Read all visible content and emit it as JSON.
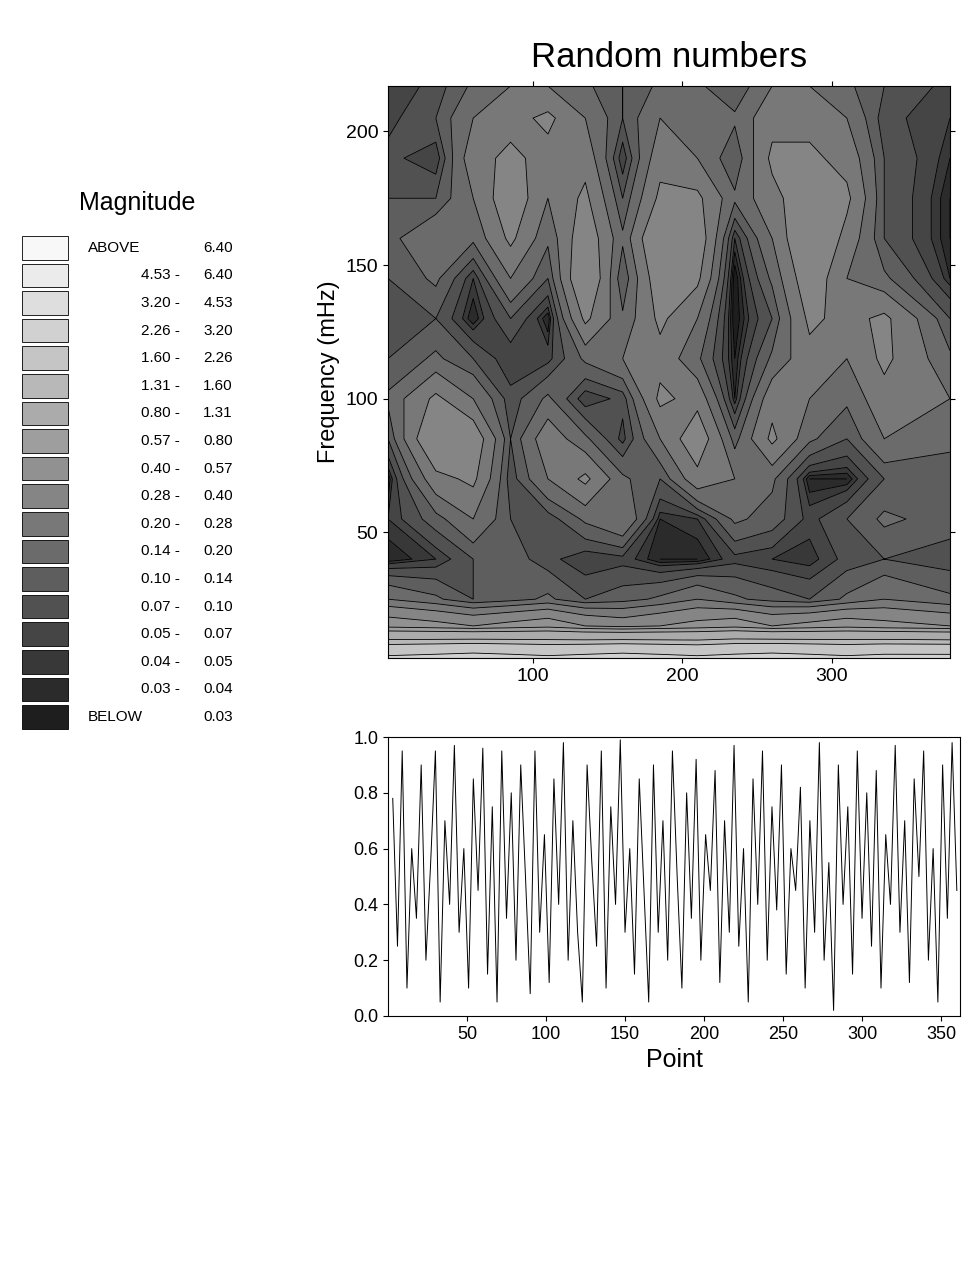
{
  "chart_data": [
    {
      "type": "contour",
      "title": "Random numbers",
      "y_label": "Frequency (mHz)",
      "x": [
        3,
        35,
        60,
        85,
        110,
        135,
        160,
        185,
        210,
        235,
        260,
        285,
        310,
        335,
        379
      ],
      "y": [
        3,
        15,
        25,
        40,
        55,
        70,
        85,
        100,
        115,
        130,
        145,
        160,
        175,
        190,
        205,
        217
      ],
      "cells": [
        [
          2.4,
          2.5,
          2.6,
          2.5,
          2.4,
          2.5,
          2.6,
          2.5,
          2.4,
          2.5,
          2.6,
          2.5,
          2.4,
          2.5,
          2.5
        ],
        [
          0.5,
          0.45,
          0.4,
          0.45,
          0.5,
          0.4,
          0.35,
          0.4,
          0.45,
          0.5,
          0.4,
          0.45,
          0.5,
          0.45,
          0.4
        ],
        [
          0.2,
          0.15,
          0.1,
          0.12,
          0.15,
          0.1,
          0.12,
          0.15,
          0.2,
          0.15,
          0.12,
          0.1,
          0.15,
          0.2,
          0.15
        ],
        [
          0.03,
          0.05,
          0.1,
          0.12,
          0.08,
          0.05,
          0.06,
          0.03,
          0.03,
          0.06,
          0.05,
          0.04,
          0.08,
          0.1,
          0.08
        ],
        [
          0.05,
          0.12,
          0.2,
          0.1,
          0.08,
          0.15,
          0.2,
          0.04,
          0.05,
          0.15,
          0.12,
          0.06,
          0.1,
          0.15,
          0.12
        ],
        [
          0.03,
          0.25,
          0.3,
          0.08,
          0.2,
          0.3,
          0.15,
          0.1,
          0.25,
          0.2,
          0.15,
          0.03,
          0.03,
          0.1,
          0.12
        ],
        [
          0.1,
          0.4,
          0.35,
          0.1,
          0.25,
          0.15,
          0.06,
          0.2,
          0.35,
          0.12,
          0.3,
          0.15,
          0.1,
          0.2,
          0.15
        ],
        [
          0.15,
          0.3,
          0.2,
          0.08,
          0.15,
          0.05,
          0.08,
          0.3,
          0.25,
          0.04,
          0.25,
          0.2,
          0.15,
          0.25,
          0.2
        ],
        [
          0.1,
          0.15,
          0.1,
          0.05,
          0.06,
          0.15,
          0.2,
          0.25,
          0.15,
          0.03,
          0.15,
          0.25,
          0.2,
          0.3,
          0.15
        ],
        [
          0.08,
          0.1,
          0.03,
          0.1,
          0.03,
          0.3,
          0.15,
          0.3,
          0.2,
          0.02,
          0.1,
          0.3,
          0.25,
          0.3,
          0.1
        ],
        [
          0.1,
          0.15,
          0.05,
          0.2,
          0.1,
          0.4,
          0.1,
          0.35,
          0.3,
          0.02,
          0.15,
          0.35,
          0.2,
          0.15,
          0.04
        ],
        [
          0.12,
          0.2,
          0.15,
          0.3,
          0.15,
          0.35,
          0.15,
          0.4,
          0.35,
          0.05,
          0.2,
          0.4,
          0.25,
          0.1,
          0.03
        ],
        [
          0.1,
          0.1,
          0.2,
          0.35,
          0.2,
          0.3,
          0.1,
          0.3,
          0.3,
          0.15,
          0.25,
          0.35,
          0.3,
          0.1,
          0.03
        ],
        [
          0.08,
          0.05,
          0.25,
          0.3,
          0.25,
          0.25,
          0.05,
          0.25,
          0.2,
          0.1,
          0.3,
          0.3,
          0.25,
          0.1,
          0.04
        ],
        [
          0.06,
          0.1,
          0.2,
          0.25,
          0.3,
          0.2,
          0.1,
          0.2,
          0.15,
          0.15,
          0.25,
          0.25,
          0.2,
          0.08,
          0.05
        ],
        [
          0.05,
          0.08,
          0.15,
          0.2,
          0.2,
          0.15,
          0.1,
          0.15,
          0.15,
          0.1,
          0.2,
          0.2,
          0.15,
          0.1,
          0.06
        ]
      ],
      "xlim": [
        3,
        379
      ],
      "xticks": [
        100,
        200,
        300
      ],
      "ylim": [
        3,
        217
      ],
      "yticks": [
        50,
        100,
        150,
        200
      ],
      "color_scale": {
        "title": "Magnitude",
        "above_label": "ABOVE",
        "below_label": "BELOW",
        "separator": "-",
        "levels": [
          0.03,
          0.04,
          0.05,
          0.07,
          {
            "value": 0.1,
            "label": "0.10"
          },
          0.14,
          {
            "value": 0.2,
            "label": "0.20"
          },
          0.28,
          {
            "value": 0.4,
            "label": "0.40"
          },
          0.57,
          {
            "value": 0.8,
            "label": "0.80"
          },
          1.31,
          {
            "value": 1.6,
            "label": "1.60"
          },
          2.26,
          {
            "value": 3.2,
            "label": "3.20"
          },
          4.53,
          {
            "value": 6.4,
            "label": "6.40"
          }
        ]
      }
    },
    {
      "type": "line",
      "x_label": "Point",
      "color": "#000000",
      "x": [
        3,
        6,
        9,
        12,
        15,
        18,
        21,
        24,
        27,
        30,
        33,
        36,
        39,
        42,
        45,
        48,
        51,
        54,
        57,
        60,
        63,
        66,
        69,
        72,
        75,
        78,
        81,
        84,
        87,
        90,
        93,
        96,
        99,
        102,
        105,
        108,
        111,
        114,
        117,
        120,
        123,
        126,
        129,
        132,
        135,
        138,
        141,
        144,
        147,
        150,
        153,
        156,
        159,
        162,
        165,
        168,
        171,
        174,
        177,
        180,
        183,
        186,
        189,
        192,
        195,
        198,
        201,
        204,
        207,
        210,
        213,
        216,
        219,
        222,
        225,
        228,
        231,
        234,
        237,
        240,
        243,
        246,
        249,
        252,
        255,
        258,
        261,
        264,
        267,
        270,
        273,
        276,
        279,
        282,
        285,
        288,
        291,
        294,
        297,
        300,
        303,
        306,
        309,
        312,
        315,
        318,
        321,
        324,
        327,
        330,
        333,
        336,
        339,
        342,
        345,
        348,
        351,
        354,
        357,
        360
      ],
      "values": [
        0.78,
        0.25,
        0.95,
        0.1,
        0.6,
        0.35,
        0.9,
        0.2,
        0.55,
        0.95,
        0.05,
        0.7,
        0.4,
        0.97,
        0.3,
        0.6,
        0.1,
        0.85,
        0.45,
        0.96,
        0.15,
        0.75,
        0.05,
        0.95,
        0.35,
        0.8,
        0.2,
        0.9,
        0.5,
        0.08,
        0.95,
        0.3,
        0.65,
        0.12,
        0.85,
        0.4,
        0.98,
        0.2,
        0.7,
        0.3,
        0.05,
        0.9,
        0.55,
        0.25,
        0.95,
        0.1,
        0.75,
        0.4,
        0.99,
        0.3,
        0.6,
        0.15,
        0.85,
        0.45,
        0.05,
        0.9,
        0.3,
        0.7,
        0.2,
        0.95,
        0.5,
        0.1,
        0.8,
        0.35,
        0.92,
        0.2,
        0.65,
        0.45,
        0.88,
        0.12,
        0.7,
        0.3,
        0.97,
        0.25,
        0.6,
        0.05,
        0.85,
        0.4,
        0.95,
        0.2,
        0.75,
        0.38,
        0.9,
        0.15,
        0.6,
        0.45,
        0.82,
        0.1,
        0.7,
        0.3,
        0.98,
        0.2,
        0.55,
        0.02,
        0.9,
        0.4,
        0.75,
        0.15,
        0.95,
        0.35,
        0.8,
        0.25,
        0.88,
        0.1,
        0.65,
        0.4,
        0.97,
        0.3,
        0.7,
        0.12,
        0.85,
        0.5,
        0.95,
        0.2,
        0.6,
        0.05,
        0.9,
        0.35,
        0.98,
        0.45
      ],
      "xlim": [
        0,
        362
      ],
      "xticks": [
        50,
        100,
        150,
        200,
        250,
        300,
        350
      ],
      "ylim": [
        0,
        1.0
      ],
      "yticks": [
        {
          "value": 0,
          "label": "0.0"
        },
        0.2,
        0.4,
        0.6,
        0.8,
        1.0
      ]
    }
  ]
}
